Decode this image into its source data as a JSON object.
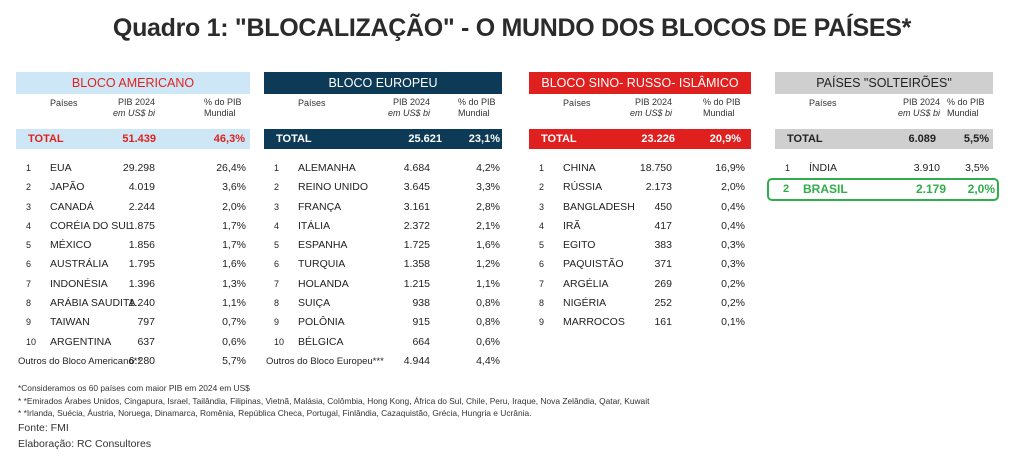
{
  "title": "Quadro 1: \"BLOCALIZAÇÃO\" - O MUNDO DOS BLOCOS DE PAÍSES*",
  "column_headers": {
    "name": "Países",
    "pib_line1": "PIB 2024",
    "pib_line2": "em US$ bi",
    "pct_line1": "% do PIB",
    "pct_line2": "Mundial"
  },
  "blocks": [
    {
      "name": "BLOCO AMERICANO",
      "total_label": "TOTAL",
      "total_pib": "51.439",
      "total_pct": "46,3%",
      "rows": [
        {
          "rank": "1",
          "name": "EUA",
          "pib": "29.298",
          "pct": "26,4%"
        },
        {
          "rank": "2",
          "name": "JAPÃO",
          "pib": "4.019",
          "pct": "3,6%"
        },
        {
          "rank": "3",
          "name": "CANADÁ",
          "pib": "2.244",
          "pct": "2,0%"
        },
        {
          "rank": "4",
          "name": "CORÉIA DO SUL",
          "pib": "1.875",
          "pct": "1,7%"
        },
        {
          "rank": "5",
          "name": "MÉXICO",
          "pib": "1.856",
          "pct": "1,7%"
        },
        {
          "rank": "6",
          "name": "AUSTRÁLIA",
          "pib": "1.795",
          "pct": "1,6%"
        },
        {
          "rank": "7",
          "name": "INDONÉSIA",
          "pib": "1.396",
          "pct": "1,3%"
        },
        {
          "rank": "8",
          "name": "ARÁBIA SAUDITA",
          "pib": "1.240",
          "pct": "1,1%"
        },
        {
          "rank": "9",
          "name": "TAIWAN",
          "pib": "797",
          "pct": "0,7%"
        },
        {
          "rank": "10",
          "name": "ARGENTINA",
          "pib": "637",
          "pct": "0,6%"
        }
      ],
      "others_label": "Outros do Bloco Americano**",
      "others_pib": "6.280",
      "others_pct": "5,7%"
    },
    {
      "name": "BLOCO EUROPEU",
      "total_label": "TOTAL",
      "total_pib": "25.621",
      "total_pct": "23,1%",
      "rows": [
        {
          "rank": "1",
          "name": "ALEMANHA",
          "pib": "4.684",
          "pct": "4,2%"
        },
        {
          "rank": "2",
          "name": "REINO UNIDO",
          "pib": "3.645",
          "pct": "3,3%"
        },
        {
          "rank": "3",
          "name": "FRANÇA",
          "pib": "3.161",
          "pct": "2,8%"
        },
        {
          "rank": "4",
          "name": "ITÁLIA",
          "pib": "2.372",
          "pct": "2,1%"
        },
        {
          "rank": "5",
          "name": "ESPANHA",
          "pib": "1.725",
          "pct": "1,6%"
        },
        {
          "rank": "6",
          "name": "TURQUIA",
          "pib": "1.358",
          "pct": "1,2%"
        },
        {
          "rank": "7",
          "name": "HOLANDA",
          "pib": "1.215",
          "pct": "1,1%"
        },
        {
          "rank": "8",
          "name": "SUIÇA",
          "pib": "938",
          "pct": "0,8%"
        },
        {
          "rank": "9",
          "name": "POLÔNIA",
          "pib": "915",
          "pct": "0,8%"
        },
        {
          "rank": "10",
          "name": "BÉLGICA",
          "pib": "664",
          "pct": "0,6%"
        }
      ],
      "others_label": "Outros do Bloco Europeu***",
      "others_pib": "4.944",
      "others_pct": "4,4%"
    },
    {
      "name": "BLOCO SINO- RUSSO- ISLÂMICO",
      "total_label": "TOTAL",
      "total_pib": "23.226",
      "total_pct": "20,9%",
      "rows": [
        {
          "rank": "1",
          "name": "CHINA",
          "pib": "18.750",
          "pct": "16,9%"
        },
        {
          "rank": "2",
          "name": "RÚSSIA",
          "pib": "2.173",
          "pct": "2,0%"
        },
        {
          "rank": "3",
          "name": "BANGLADESH",
          "pib": "450",
          "pct": "0,4%"
        },
        {
          "rank": "4",
          "name": "IRÃ",
          "pib": "417",
          "pct": "0,4%"
        },
        {
          "rank": "5",
          "name": "EGITO",
          "pib": "383",
          "pct": "0,3%"
        },
        {
          "rank": "6",
          "name": "PAQUISTÃO",
          "pib": "371",
          "pct": "0,3%"
        },
        {
          "rank": "7",
          "name": "ARGÉLIA",
          "pib": "269",
          "pct": "0,2%"
        },
        {
          "rank": "8",
          "name": "NIGÉRIA",
          "pib": "252",
          "pct": "0,2%"
        },
        {
          "rank": "9",
          "name": "MARROCOS",
          "pib": "161",
          "pct": "0,1%"
        }
      ]
    },
    {
      "name": "PAÍSES \"SOLTEIRÕES\"",
      "total_label": "TOTAL",
      "total_pib": "6.089",
      "total_pct": "5,5%",
      "rows": [
        {
          "rank": "1",
          "name": "ÍNDIA",
          "pib": "3.910",
          "pct": "3,5%"
        },
        {
          "rank": "2",
          "name": "BRASIL",
          "pib": "2.179",
          "pct": "2,0%",
          "highlight": true
        }
      ]
    }
  ],
  "notes": {
    "n1": "*Consideramos os 60 países com maior PIB em 2024 em US$",
    "n2": "* *Emirados Árabes Unidos, Cingapura, Israel, Tailândia, Filipinas, Vietnã, Malásia, Colômbia, Hong Kong, África do Sul, Chile, Peru, Iraque, Nova Zelândia, Qatar, Kuwait",
    "n3": "* *Irlanda, Suécia, Áustria, Noruega, Dinamarca, Romênia, República Checa, Portugal, Finlândia, Cazaquistão, Grécia, Hungria e Ucrânia.",
    "source": "Fonte: FMI",
    "prepared": "Elaboração: RC Consultores"
  },
  "colors": {
    "american": "#cde7f6",
    "american_text": "#e0221d",
    "european": "#0d3b57",
    "sino": "#e01f1f",
    "single": "#cfcfcf",
    "highlight": "#2fae4a"
  }
}
